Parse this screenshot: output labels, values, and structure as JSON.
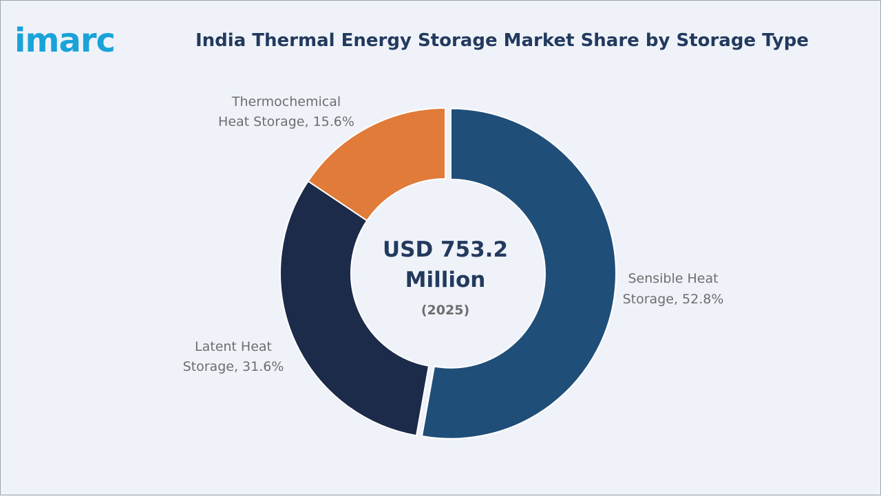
{
  "brand": {
    "logo_text": "imarc",
    "logo_color": "#1aa3d9"
  },
  "chart_data": {
    "type": "pie",
    "title": "India Thermal Energy Storage Market Share by Storage Type",
    "donut": true,
    "center": {
      "value_line1": "USD 753.2",
      "value_line2": "Million",
      "year": "(2025)"
    },
    "slices": [
      {
        "label_line1": "Sensible Heat",
        "label_line2": "Storage, 52.8%",
        "value": 52.8,
        "color": "#1f4e79"
      },
      {
        "label_line1": "Latent Heat",
        "label_line2": "Storage, 31.6%",
        "value": 31.6,
        "color": "#1c2b4a"
      },
      {
        "label_line1": "Thermochemical",
        "label_line2": "Heat Storage, 15.6%",
        "value": 15.6,
        "color": "#e07b39"
      }
    ]
  }
}
